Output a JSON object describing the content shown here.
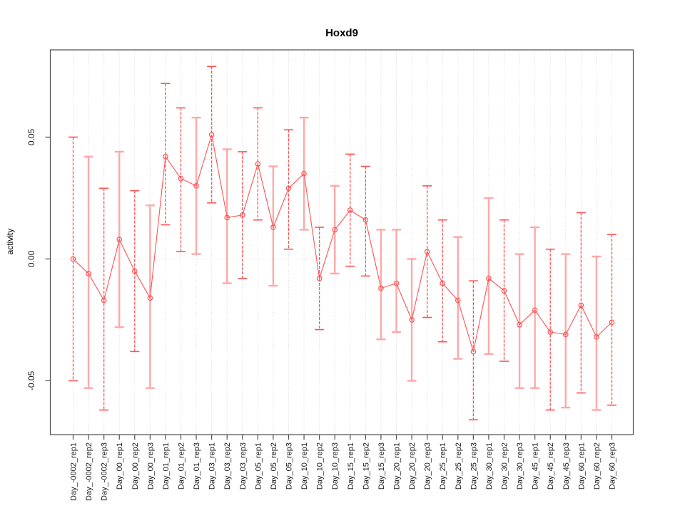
{
  "chart_data": {
    "type": "scatter",
    "title": "Hoxd9",
    "ylabel": "activity",
    "xlabel": "",
    "legend": null,
    "grid": "vertical-dotted-per-category",
    "zero_reference_line": true,
    "ylim": [
      -0.0721,
      0.0858
    ],
    "yticks": [
      {
        "label": "0.05",
        "value": 0.05
      },
      {
        "label": "0.00",
        "value": 0.0
      },
      {
        "label": "-0.05",
        "value": -0.05
      }
    ],
    "colors": {
      "point": "#ff5252",
      "line": "#ff5252",
      "dashed_bar": "#ff5252",
      "solid_bar": "#ffa8a8",
      "grid": "#d9d9d9",
      "zero_line": "#dcdcdc",
      "axis": "#4d4d4d",
      "text": "#1a1a1a"
    },
    "categories": [
      "Day_-0002_rep1",
      "Day_-0002_rep2",
      "Day_-0002_rep3",
      "Day_00_rep1",
      "Day_00_rep2",
      "Day_00_rep3",
      "Day_01_rep1",
      "Day_01_rep2",
      "Day_01_rep3",
      "Day_03_rep1",
      "Day_03_rep2",
      "Day_03_rep3",
      "Day_05_rep1",
      "Day_05_rep2",
      "Day_05_rep3",
      "Day_10_rep1",
      "Day_10_rep2",
      "Day_10_rep3",
      "Day_15_rep1",
      "Day_15_rep2",
      "Day_15_rep3",
      "Day_20_rep1",
      "Day_20_rep2",
      "Day_20_rep3",
      "Day_25_rep1",
      "Day_25_rep2",
      "Day_25_rep3",
      "Day_30_rep1",
      "Day_30_rep2",
      "Day_30_rep3",
      "Day_45_rep1",
      "Day_45_rep2",
      "Day_45_rep3",
      "Day_60_rep1",
      "Day_60_rep2",
      "Day_60_rep3"
    ],
    "values": [
      0.0,
      -0.006,
      -0.017,
      0.008,
      -0.005,
      -0.016,
      0.042,
      0.033,
      0.03,
      0.051,
      0.017,
      0.018,
      0.039,
      0.013,
      0.029,
      0.035,
      -0.008,
      0.012,
      0.02,
      0.016,
      -0.012,
      -0.01,
      -0.025,
      0.003,
      -0.01,
      -0.017,
      -0.038,
      -0.008,
      -0.013,
      -0.027,
      -0.021,
      -0.03,
      -0.031,
      -0.019,
      -0.032,
      -0.026
    ],
    "error_upper": [
      0.05,
      0.042,
      0.029,
      0.044,
      0.028,
      0.022,
      0.072,
      0.062,
      0.058,
      0.079,
      0.045,
      0.044,
      0.062,
      0.038,
      0.053,
      0.058,
      0.013,
      0.03,
      0.043,
      0.038,
      0.012,
      0.012,
      0.0,
      0.03,
      0.016,
      0.009,
      -0.009,
      0.025,
      0.016,
      0.002,
      0.013,
      0.004,
      0.002,
      0.019,
      0.001,
      0.01
    ],
    "error_lower": [
      -0.05,
      -0.053,
      -0.062,
      -0.028,
      -0.038,
      -0.053,
      0.014,
      0.003,
      0.002,
      0.023,
      -0.01,
      -0.008,
      0.016,
      -0.011,
      0.004,
      0.012,
      -0.029,
      -0.006,
      -0.003,
      -0.007,
      -0.033,
      -0.03,
      -0.05,
      -0.024,
      -0.034,
      -0.041,
      -0.066,
      -0.039,
      -0.042,
      -0.053,
      -0.053,
      -0.062,
      -0.061,
      -0.055,
      -0.062,
      -0.06
    ],
    "bar_styles": [
      "dashed",
      "solid",
      "dashed",
      "solid",
      "dashed",
      "solid",
      "dashed",
      "dashed",
      "solid",
      "dashed",
      "solid",
      "dashed",
      "dashed",
      "solid",
      "dashed",
      "solid",
      "dashed",
      "solid",
      "dashed",
      "dashed",
      "solid",
      "solid",
      "solid",
      "dashed",
      "dashed",
      "solid",
      "dashed",
      "solid",
      "dashed",
      "solid",
      "solid",
      "dashed",
      "solid",
      "dashed",
      "solid",
      "dashed"
    ]
  }
}
